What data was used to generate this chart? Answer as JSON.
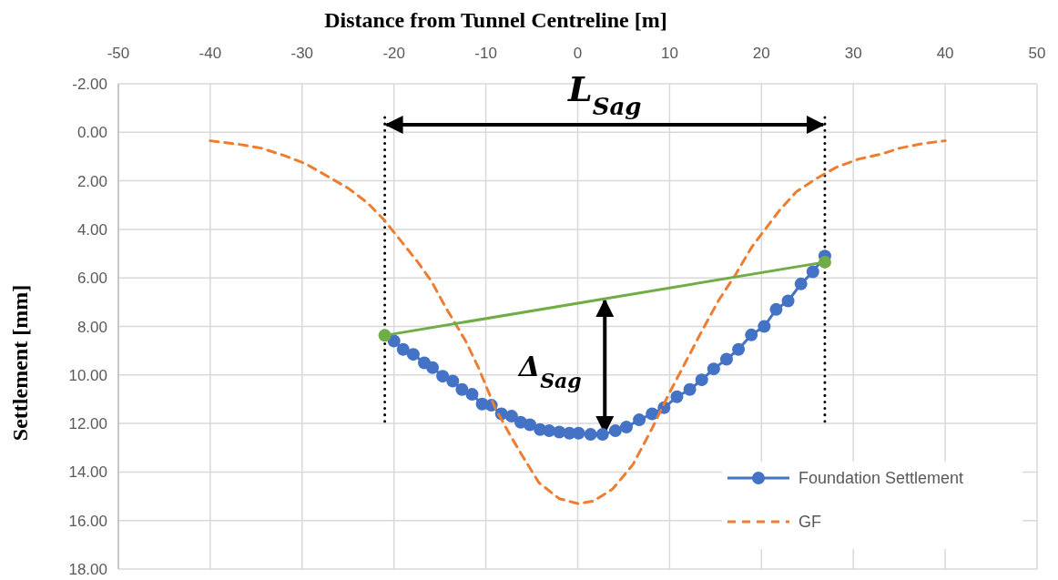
{
  "chart_data": {
    "type": "line",
    "xlabel": "Distance from Tunnel Centreline [m]",
    "ylabel": "Settlement [mm]",
    "xlim": [
      -50,
      50
    ],
    "xticks": [
      -50,
      -40,
      -30,
      -20,
      -10,
      0,
      10,
      20,
      30,
      40,
      50
    ],
    "ylim": [
      18,
      -2
    ],
    "yticks": [
      {
        "value": -2,
        "label": "-2.00"
      },
      {
        "value": 0,
        "label": "0.00"
      },
      {
        "value": 2,
        "label": "2.00"
      },
      {
        "value": 4,
        "label": "4.00"
      },
      {
        "value": 6,
        "label": "6.00"
      },
      {
        "value": 8,
        "label": "8.00"
      },
      {
        "value": 10,
        "label": "10.00"
      },
      {
        "value": 12,
        "label": "12.00"
      },
      {
        "value": 14,
        "label": "14.00"
      },
      {
        "value": 16,
        "label": "16.00"
      },
      {
        "value": 18,
        "label": "18.00"
      }
    ],
    "grid": true,
    "legend": "bottom right",
    "series": [
      {
        "name": "Foundation Settlement",
        "color": "#4472c4",
        "marker": "circle",
        "line_style": "solid",
        "x": [
          -20.0,
          -19.0,
          -17.9,
          -16.7,
          -15.8,
          -14.7,
          -13.6,
          -12.6,
          -11.5,
          -10.4,
          -9.4,
          -8.3,
          -7.2,
          -6.2,
          -5.2,
          -4.1,
          -3.1,
          -2.0,
          -0.9,
          0.1,
          1.4,
          2.7,
          4.1,
          5.3,
          6.7,
          8.1,
          9.4,
          10.8,
          12.2,
          13.5,
          14.8,
          16.2,
          17.5,
          18.9,
          20.3,
          21.6,
          22.9,
          24.3,
          25.6,
          26.9
        ],
        "values": [
          8.6,
          8.95,
          9.15,
          9.5,
          9.7,
          10.05,
          10.25,
          10.6,
          10.8,
          11.2,
          11.25,
          11.6,
          11.7,
          11.95,
          12.05,
          12.25,
          12.3,
          12.35,
          12.4,
          12.4,
          12.45,
          12.45,
          12.3,
          12.15,
          11.85,
          11.6,
          11.35,
          10.9,
          10.6,
          10.2,
          9.75,
          9.35,
          8.95,
          8.35,
          8.0,
          7.3,
          6.95,
          6.25,
          5.75,
          5.1
        ]
      },
      {
        "name": "GF",
        "color": "#ed7d31",
        "marker": "none",
        "line_style": "dashed",
        "x": [
          -40,
          -36.8,
          -34.5,
          -32,
          -29.6,
          -27.3,
          -25,
          -22.9,
          -21.1,
          -19.3,
          -17.4,
          -15.9,
          -14.4,
          -12.2,
          -10.8,
          -9,
          -7.4,
          -6,
          -4.2,
          -2,
          0,
          1.7,
          3.8,
          6,
          8.1,
          9.9,
          11.7,
          13.5,
          15.3,
          17.2,
          19,
          20.5,
          22,
          23.8,
          26,
          28.1,
          30.6,
          33,
          35.1,
          37.8,
          40
        ],
        "values": [
          0.35,
          0.5,
          0.65,
          0.95,
          1.3,
          1.8,
          2.3,
          2.9,
          3.6,
          4.45,
          5.35,
          6.15,
          7.2,
          8.6,
          9.7,
          11.35,
          12.45,
          13.35,
          14.45,
          15.1,
          15.3,
          15.2,
          14.7,
          13.7,
          12.2,
          10.8,
          9.5,
          8.2,
          6.95,
          5.85,
          4.7,
          3.95,
          3.2,
          2.45,
          1.9,
          1.45,
          1.1,
          0.9,
          0.65,
          0.45,
          0.35
        ]
      },
      {
        "color": "#70ad47",
        "marker": "circle",
        "line_style": "solid",
        "x": [
          -21.0,
          26.9
        ],
        "values": [
          8.37,
          5.35
        ]
      }
    ],
    "ref_lines": [
      {
        "axis": "x",
        "value": -21.0,
        "color": "#000000",
        "line_style": "dotted"
      },
      {
        "axis": "x",
        "value": 26.9,
        "color": "#000000",
        "line_style": "dotted"
      }
    ],
    "annotations": [
      "L$_{Sag}$",
      "Δ$_{Sag}$"
    ]
  }
}
